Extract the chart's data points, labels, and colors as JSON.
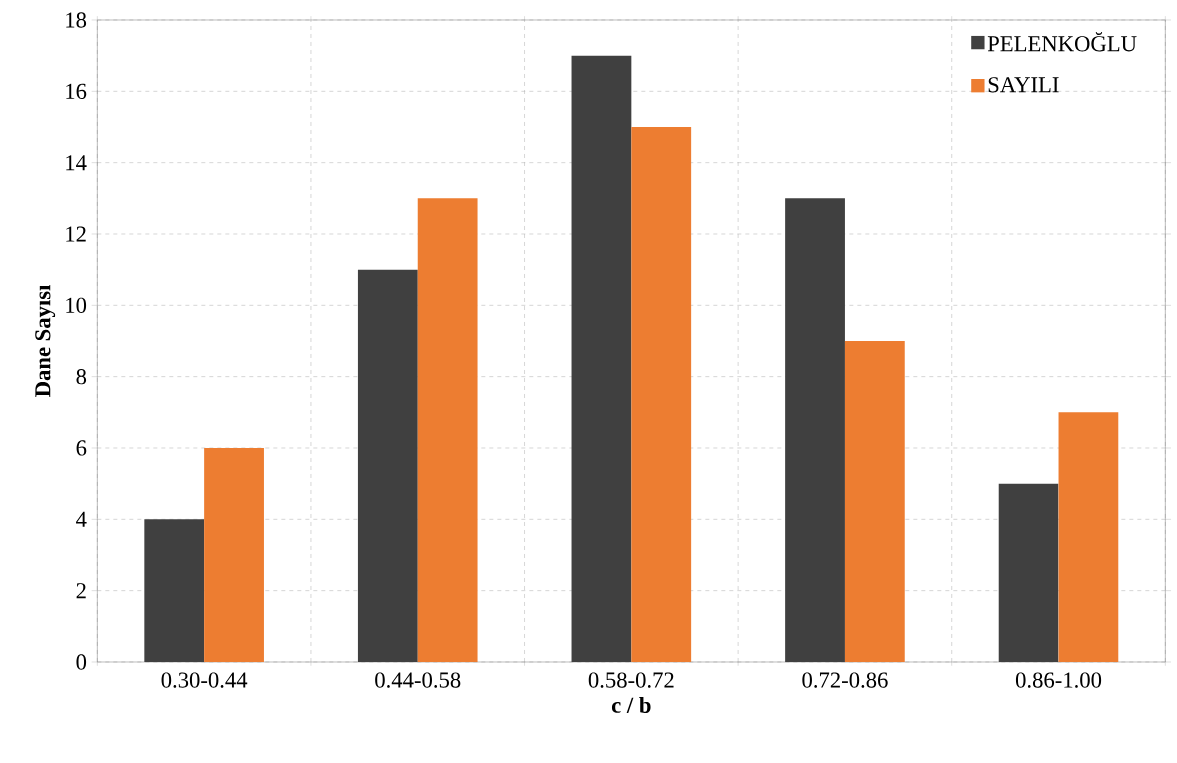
{
  "chart_data": {
    "type": "bar",
    "xlabel": "c / b",
    "ylabel": "Dane Sayısı",
    "categories": [
      "0.30-0.44",
      "0.44-0.58",
      "0.58-0.72",
      "0.72-0.86",
      "0.86-1.00"
    ],
    "series": [
      {
        "name": "PELENKOĞLU",
        "color": "#404040",
        "values": [
          4,
          11,
          17,
          13,
          5
        ]
      },
      {
        "name": "SAYILI",
        "color": "#ed7d31",
        "values": [
          6,
          13,
          15,
          9,
          7
        ]
      }
    ],
    "ylim": [
      0,
      18
    ],
    "yticks": [
      0,
      2,
      4,
      6,
      8,
      10,
      12,
      14,
      16,
      18
    ],
    "grid": true,
    "legend": "top right"
  }
}
